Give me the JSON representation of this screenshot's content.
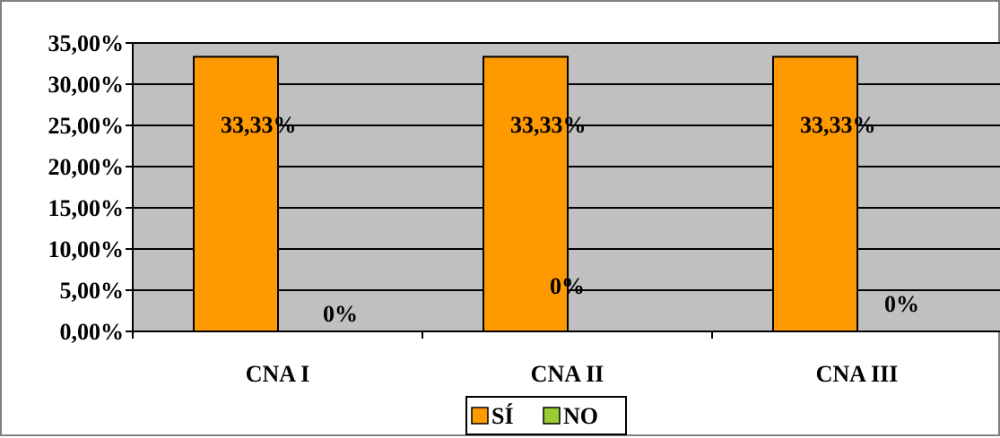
{
  "chart_data": {
    "type": "bar",
    "categories": [
      "CNA I",
      "CNA II",
      "CNA III"
    ],
    "series": [
      {
        "name": "SÍ",
        "values": [
          33.33,
          33.33,
          33.33
        ],
        "labels": [
          "33,33%",
          "33,33%",
          "33,33%"
        ],
        "color": "#FF9900"
      },
      {
        "name": "NO",
        "values": [
          0,
          0,
          0
        ],
        "labels": [
          "0%",
          "0%",
          "0%"
        ],
        "color": "#99CC33"
      }
    ],
    "ylim": [
      0,
      35
    ],
    "yticks": [
      0,
      5,
      10,
      15,
      20,
      25,
      30,
      35
    ],
    "ytick_labels": [
      "0,00%",
      "5,00%",
      "10,00%",
      "15,00%",
      "20,00%",
      "25,00%",
      "30,00%",
      "35,00%"
    ],
    "grid": true,
    "legend_position": "bottom",
    "plot_background": "#C0C0C0",
    "title": "",
    "xlabel": "",
    "ylabel": ""
  }
}
